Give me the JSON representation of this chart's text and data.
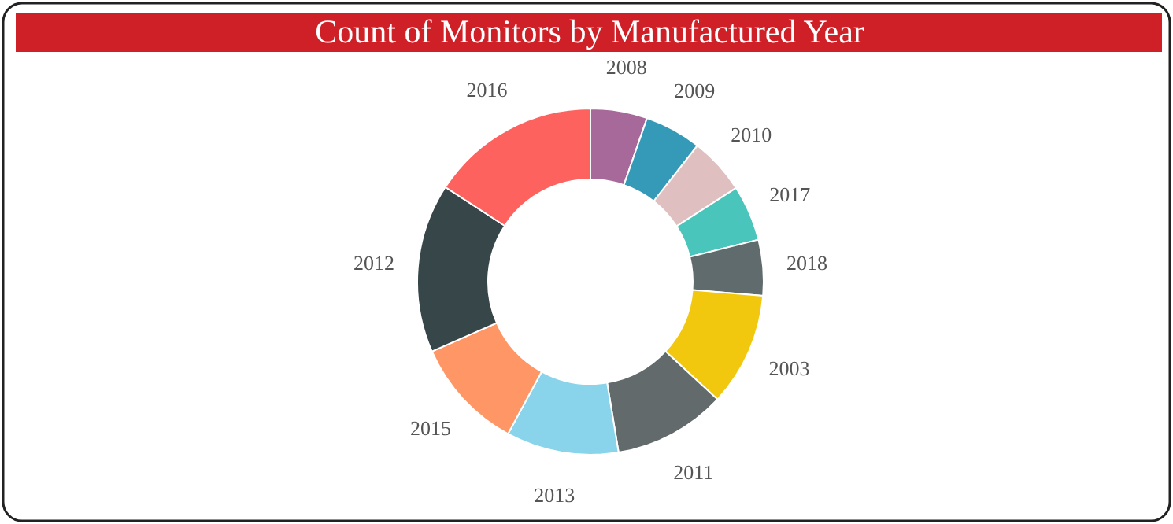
{
  "chart_data": {
    "type": "donut",
    "title": "Count of Monitors by Manufactured Year",
    "categories": [
      "2008",
      "2009",
      "2010",
      "2017",
      "2018",
      "2003",
      "2011",
      "2013",
      "2015",
      "2012",
      "2016"
    ],
    "values": [
      5.3,
      5.3,
      5.3,
      5.2,
      5.2,
      10.6,
      10.5,
      10.5,
      10.5,
      15.8,
      15.8
    ],
    "colors": [
      "#a66999",
      "#3599b8",
      "#dfbfbf",
      "#4ac5bb",
      "#5f6b6d",
      "#f2c80f",
      "#626a6c",
      "#8ad4eb",
      "#fe9666",
      "#374649",
      "#fd625e"
    ]
  }
}
